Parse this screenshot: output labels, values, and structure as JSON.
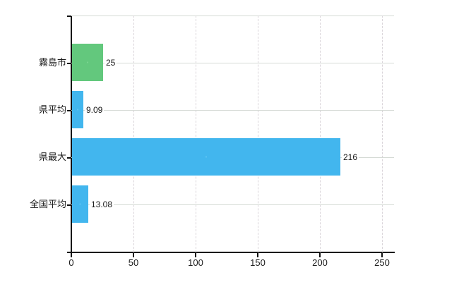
{
  "chart_data": {
    "type": "bar",
    "orientation": "horizontal",
    "title": "",
    "xlabel": "",
    "ylabel": "",
    "categories": [
      "霧島市",
      "県平均",
      "県最大",
      "全国平均"
    ],
    "values": [
      25,
      9.09,
      216,
      13.08
    ],
    "value_labels": [
      "25",
      "9.09",
      "216",
      "13.08"
    ],
    "bar_colors": [
      "#63c87d",
      "#42b6ee",
      "#42b6ee",
      "#42b6ee"
    ],
    "bar_speckle_colors": [
      "#79d490",
      "#5ec4f4",
      "#5ec4f4",
      "#5ec4f4"
    ],
    "x_ticks": [
      0,
      50,
      100,
      150,
      200,
      250
    ],
    "x_tick_labels": [
      "0",
      "50",
      "100",
      "150",
      "200",
      "250"
    ],
    "xlim": [
      0,
      260
    ],
    "grid": true,
    "legend": false,
    "colors": {
      "axis": "#111111",
      "gridline_horizontal": "#d5dad5",
      "gridline_vertical": "#d9d4d9",
      "text": "#1a1a1a",
      "background": "#ffffff"
    }
  }
}
